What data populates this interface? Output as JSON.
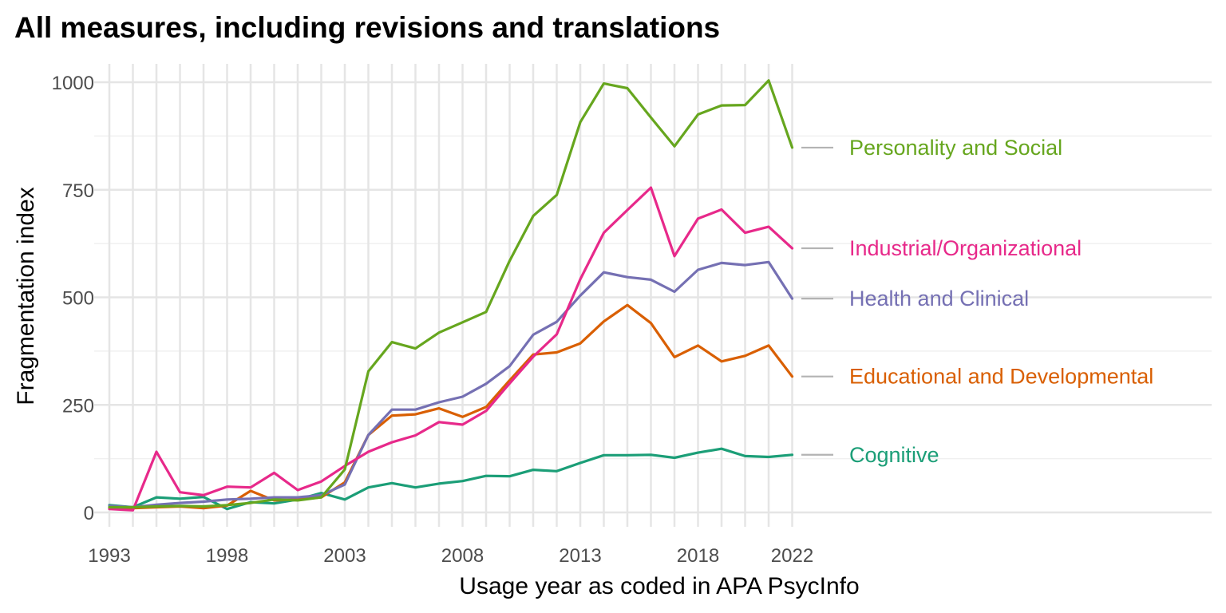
{
  "chart_data": {
    "type": "line",
    "title": "All measures, including revisions and translations",
    "xlabel": "Usage year as coded in APA PsycInfo",
    "ylabel": "Fragmentation index",
    "xlim": [
      1993,
      2022
    ],
    "ylim": [
      0,
      1000
    ],
    "x_ticks": [
      1993,
      1998,
      2003,
      2008,
      2013,
      2018,
      2022
    ],
    "y_ticks": [
      0,
      250,
      500,
      750,
      1000
    ],
    "grid": true,
    "legend": "direct labels at right end of lines",
    "x": [
      1993,
      1994,
      1995,
      1996,
      1997,
      1998,
      1999,
      2000,
      2001,
      2002,
      2003,
      2004,
      2005,
      2006,
      2007,
      2008,
      2009,
      2010,
      2011,
      2012,
      2013,
      2014,
      2015,
      2016,
      2017,
      2018,
      2019,
      2020,
      2021,
      2022
    ],
    "series": [
      {
        "name": "Cognitive",
        "color": "#1b9e77",
        "values": [
          17,
          12,
          35,
          32,
          36,
          8,
          24,
          21,
          30,
          45,
          30,
          58,
          68,
          58,
          67,
          73,
          85,
          84,
          99,
          96,
          115,
          133,
          133,
          134,
          127,
          139,
          148,
          131,
          129,
          134
        ]
      },
      {
        "name": "Educational and Developmental",
        "color": "#d95f02",
        "values": [
          10,
          10,
          12,
          14,
          10,
          16,
          50,
          28,
          30,
          35,
          70,
          180,
          225,
          228,
          242,
          222,
          245,
          307,
          367,
          372,
          393,
          444,
          482,
          440,
          361,
          388,
          351,
          364,
          388,
          316
        ]
      },
      {
        "name": "Health and Clinical",
        "color": "#7570b3",
        "values": [
          15,
          12,
          18,
          22,
          25,
          30,
          32,
          35,
          35,
          40,
          65,
          180,
          239,
          239,
          256,
          269,
          299,
          340,
          413,
          443,
          504,
          558,
          547,
          541,
          513,
          564,
          580,
          575,
          582,
          497
        ]
      },
      {
        "name": "Industrial/Organizational",
        "color": "#e7298a",
        "values": [
          8,
          5,
          141,
          47,
          40,
          60,
          58,
          92,
          52,
          72,
          108,
          141,
          163,
          179,
          210,
          204,
          236,
          300,
          362,
          414,
          542,
          650,
          703,
          755,
          596,
          683,
          704,
          650,
          664,
          614
        ]
      },
      {
        "name": "Personality and Social",
        "color": "#66a61e",
        "values": [
          12,
          12,
          14,
          15,
          14,
          17,
          22,
          30,
          28,
          35,
          100,
          328,
          396,
          381,
          418,
          442,
          466,
          585,
          689,
          738,
          907,
          997,
          986,
          918,
          851,
          925,
          946,
          947,
          1004,
          848
        ]
      }
    ],
    "end_labels": [
      {
        "name": "Personality and Social",
        "value": 848
      },
      {
        "name": "Industrial/Organizational",
        "value": 614
      },
      {
        "name": "Health and Clinical",
        "value": 497
      },
      {
        "name": "Educational and Developmental",
        "value": 316
      },
      {
        "name": "Cognitive",
        "value": 134
      }
    ]
  }
}
